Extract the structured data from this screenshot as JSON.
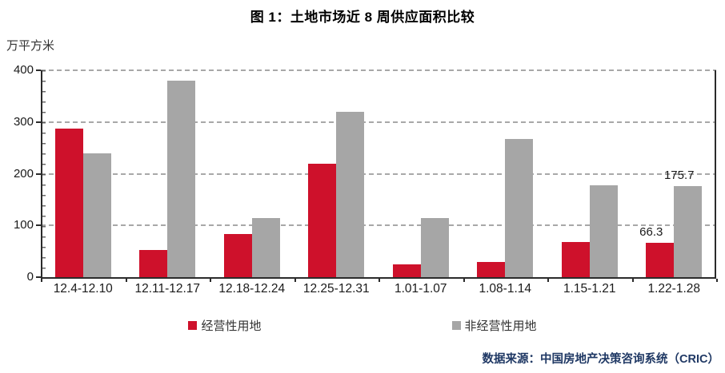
{
  "title": "图 1：土地市场近 8 周供应面积比较",
  "source_note": "数据来源：中国房地产决策咨询系统（CRIC）",
  "colors": {
    "series_operating": "#ce112b",
    "series_non_operating": "#a6a6a6",
    "grid": "#a8a8a8",
    "axis": "#2b2b2b",
    "source_text": "#1f3864"
  },
  "chart_data": {
    "type": "bar",
    "title": "图 1：土地市场近 8 周供应面积比较",
    "xlabel": "",
    "ylabel": "万平方米",
    "ylim": [
      0,
      400
    ],
    "yticks": [
      0,
      100,
      200,
      300,
      400
    ],
    "grid": true,
    "legend_position": "bottom",
    "categories": [
      "12.4-12.10",
      "12.11-12.17",
      "12.18-12.24",
      "12.25-12.31",
      "1.01-1.07",
      "1.08-1.14",
      "1.15-1.21",
      "1.22-1.28"
    ],
    "series": [
      {
        "name": "经营性用地",
        "color": "#ce112b",
        "values": [
          288,
          52,
          83,
          219,
          25,
          29,
          68,
          66.3
        ],
        "point_labels": [
          null,
          null,
          null,
          null,
          null,
          null,
          null,
          "66.3"
        ]
      },
      {
        "name": "非经营性用地",
        "color": "#a6a6a6",
        "values": [
          240,
          380,
          115,
          319,
          114,
          267,
          177,
          175.7
        ],
        "point_labels": [
          null,
          null,
          null,
          null,
          null,
          null,
          null,
          "175.7"
        ]
      }
    ]
  }
}
